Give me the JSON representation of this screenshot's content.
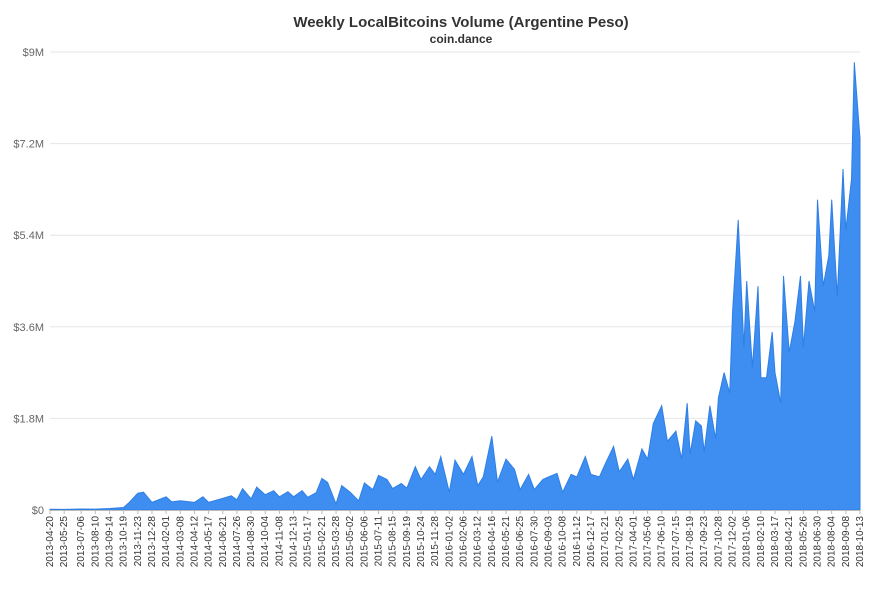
{
  "chart_data": {
    "type": "area",
    "title": "Weekly LocalBitcoins Volume (Argentine Peso)",
    "subtitle": "coin.dance",
    "xlabel": "",
    "ylabel": "",
    "ylim": [
      0,
      9000000
    ],
    "y_ticks": [
      0,
      1800000,
      3600000,
      5400000,
      7200000,
      9000000
    ],
    "y_tick_labels": [
      "$0",
      "$1.8M",
      "$3.6M",
      "$5.4M",
      "$7.2M",
      "$9M"
    ],
    "x_range": [
      "2013-04-20",
      "2018-10-13"
    ],
    "x_tick_labels": [
      "2013-04-20",
      "2013-05-25",
      "2013-07-06",
      "2013-08-10",
      "2013-09-14",
      "2013-10-19",
      "2013-11-23",
      "2013-12-28",
      "2014-02-01",
      "2014-03-08",
      "2014-04-12",
      "2014-05-17",
      "2014-06-21",
      "2014-07-26",
      "2014-08-30",
      "2014-10-04",
      "2014-11-08",
      "2014-12-13",
      "2015-01-17",
      "2015-02-21",
      "2015-03-28",
      "2015-05-02",
      "2015-06-06",
      "2015-07-11",
      "2015-08-15",
      "2015-09-19",
      "2015-10-24",
      "2015-11-28",
      "2016-01-02",
      "2016-02-06",
      "2016-03-12",
      "2016-04-16",
      "2016-05-21",
      "2016-06-25",
      "2016-07-30",
      "2016-09-03",
      "2016-10-08",
      "2016-11-12",
      "2016-12-17",
      "2017-01-21",
      "2017-02-25",
      "2017-04-01",
      "2017-05-06",
      "2017-06-10",
      "2017-07-15",
      "2017-08-19",
      "2017-09-23",
      "2017-10-28",
      "2017-12-02",
      "2018-01-06",
      "2018-02-10",
      "2018-03-17",
      "2018-04-21",
      "2018-05-26",
      "2018-06-30",
      "2018-08-04",
      "2018-09-08",
      "2018-10-13"
    ],
    "grid": true,
    "legend": "none",
    "color": "#3d8ef0",
    "series": [
      {
        "points": [
          [
            "2013-04-20",
            15000
          ],
          [
            "2013-05-25",
            12000
          ],
          [
            "2013-07-06",
            20000
          ],
          [
            "2013-08-10",
            18000
          ],
          [
            "2013-09-14",
            30000
          ],
          [
            "2013-10-19",
            50000
          ],
          [
            "2013-11-02",
            150000
          ],
          [
            "2013-11-23",
            330000
          ],
          [
            "2013-12-07",
            350000
          ],
          [
            "2013-12-28",
            150000
          ],
          [
            "2014-02-01",
            260000
          ],
          [
            "2014-02-15",
            160000
          ],
          [
            "2014-03-08",
            180000
          ],
          [
            "2014-04-12",
            150000
          ],
          [
            "2014-05-03",
            260000
          ],
          [
            "2014-05-17",
            150000
          ],
          [
            "2014-06-21",
            230000
          ],
          [
            "2014-07-12",
            280000
          ],
          [
            "2014-07-26",
            200000
          ],
          [
            "2014-08-09",
            420000
          ],
          [
            "2014-08-30",
            220000
          ],
          [
            "2014-09-13",
            450000
          ],
          [
            "2014-10-04",
            300000
          ],
          [
            "2014-10-25",
            380000
          ],
          [
            "2014-11-08",
            260000
          ],
          [
            "2014-11-29",
            360000
          ],
          [
            "2014-12-13",
            260000
          ],
          [
            "2015-01-03",
            380000
          ],
          [
            "2015-01-17",
            250000
          ],
          [
            "2015-02-07",
            340000
          ],
          [
            "2015-02-21",
            620000
          ],
          [
            "2015-03-07",
            540000
          ],
          [
            "2015-03-28",
            120000
          ],
          [
            "2015-04-11",
            480000
          ],
          [
            "2015-05-02",
            350000
          ],
          [
            "2015-05-23",
            180000
          ],
          [
            "2015-06-06",
            530000
          ],
          [
            "2015-06-27",
            400000
          ],
          [
            "2015-07-11",
            680000
          ],
          [
            "2015-08-01",
            600000
          ],
          [
            "2015-08-15",
            420000
          ],
          [
            "2015-09-05",
            520000
          ],
          [
            "2015-09-19",
            430000
          ],
          [
            "2015-10-10",
            850000
          ],
          [
            "2015-10-24",
            600000
          ],
          [
            "2015-11-14",
            850000
          ],
          [
            "2015-11-28",
            700000
          ],
          [
            "2015-12-12",
            1050000
          ],
          [
            "2016-01-02",
            350000
          ],
          [
            "2016-01-16",
            980000
          ],
          [
            "2016-02-06",
            700000
          ],
          [
            "2016-02-27",
            1050000
          ],
          [
            "2016-03-12",
            480000
          ],
          [
            "2016-03-26",
            650000
          ],
          [
            "2016-04-16",
            1450000
          ],
          [
            "2016-04-30",
            550000
          ],
          [
            "2016-05-21",
            1000000
          ],
          [
            "2016-06-11",
            800000
          ],
          [
            "2016-06-25",
            400000
          ],
          [
            "2016-07-16",
            700000
          ],
          [
            "2016-07-30",
            400000
          ],
          [
            "2016-08-20",
            600000
          ],
          [
            "2016-09-03",
            650000
          ],
          [
            "2016-09-24",
            720000
          ],
          [
            "2016-10-08",
            350000
          ],
          [
            "2016-10-29",
            700000
          ],
          [
            "2016-11-12",
            650000
          ],
          [
            "2016-12-03",
            1050000
          ],
          [
            "2016-12-17",
            700000
          ],
          [
            "2017-01-07",
            650000
          ],
          [
            "2017-01-21",
            900000
          ],
          [
            "2017-02-11",
            1250000
          ],
          [
            "2017-02-25",
            750000
          ],
          [
            "2017-03-18",
            1000000
          ],
          [
            "2017-04-01",
            600000
          ],
          [
            "2017-04-22",
            1200000
          ],
          [
            "2017-05-06",
            1000000
          ],
          [
            "2017-05-20",
            1700000
          ],
          [
            "2017-06-10",
            2050000
          ],
          [
            "2017-06-24",
            1350000
          ],
          [
            "2017-07-15",
            1550000
          ],
          [
            "2017-07-29",
            1000000
          ],
          [
            "2017-08-12",
            2100000
          ],
          [
            "2017-08-19",
            1100000
          ],
          [
            "2017-09-02",
            1750000
          ],
          [
            "2017-09-16",
            1650000
          ],
          [
            "2017-09-23",
            1150000
          ],
          [
            "2017-10-07",
            2050000
          ],
          [
            "2017-10-21",
            1400000
          ],
          [
            "2017-10-28",
            2200000
          ],
          [
            "2017-11-11",
            2700000
          ],
          [
            "2017-11-25",
            2300000
          ],
          [
            "2017-12-02",
            3900000
          ],
          [
            "2017-12-16",
            5700000
          ],
          [
            "2017-12-30",
            3200000
          ],
          [
            "2018-01-06",
            4500000
          ],
          [
            "2018-01-20",
            2800000
          ],
          [
            "2018-02-03",
            4400000
          ],
          [
            "2018-02-10",
            2600000
          ],
          [
            "2018-02-24",
            2600000
          ],
          [
            "2018-03-10",
            3500000
          ],
          [
            "2018-03-17",
            2700000
          ],
          [
            "2018-03-31",
            2100000
          ],
          [
            "2018-04-07",
            4600000
          ],
          [
            "2018-04-21",
            3100000
          ],
          [
            "2018-05-05",
            3700000
          ],
          [
            "2018-05-19",
            4600000
          ],
          [
            "2018-05-26",
            3200000
          ],
          [
            "2018-06-09",
            4500000
          ],
          [
            "2018-06-23",
            3900000
          ],
          [
            "2018-06-30",
            6100000
          ],
          [
            "2018-07-14",
            4400000
          ],
          [
            "2018-07-28",
            5000000
          ],
          [
            "2018-08-04",
            6100000
          ],
          [
            "2018-08-18",
            4200000
          ],
          [
            "2018-09-01",
            6700000
          ],
          [
            "2018-09-08",
            5500000
          ],
          [
            "2018-09-22",
            6500000
          ],
          [
            "2018-09-29",
            8800000
          ],
          [
            "2018-10-13",
            7300000
          ]
        ]
      }
    ]
  }
}
